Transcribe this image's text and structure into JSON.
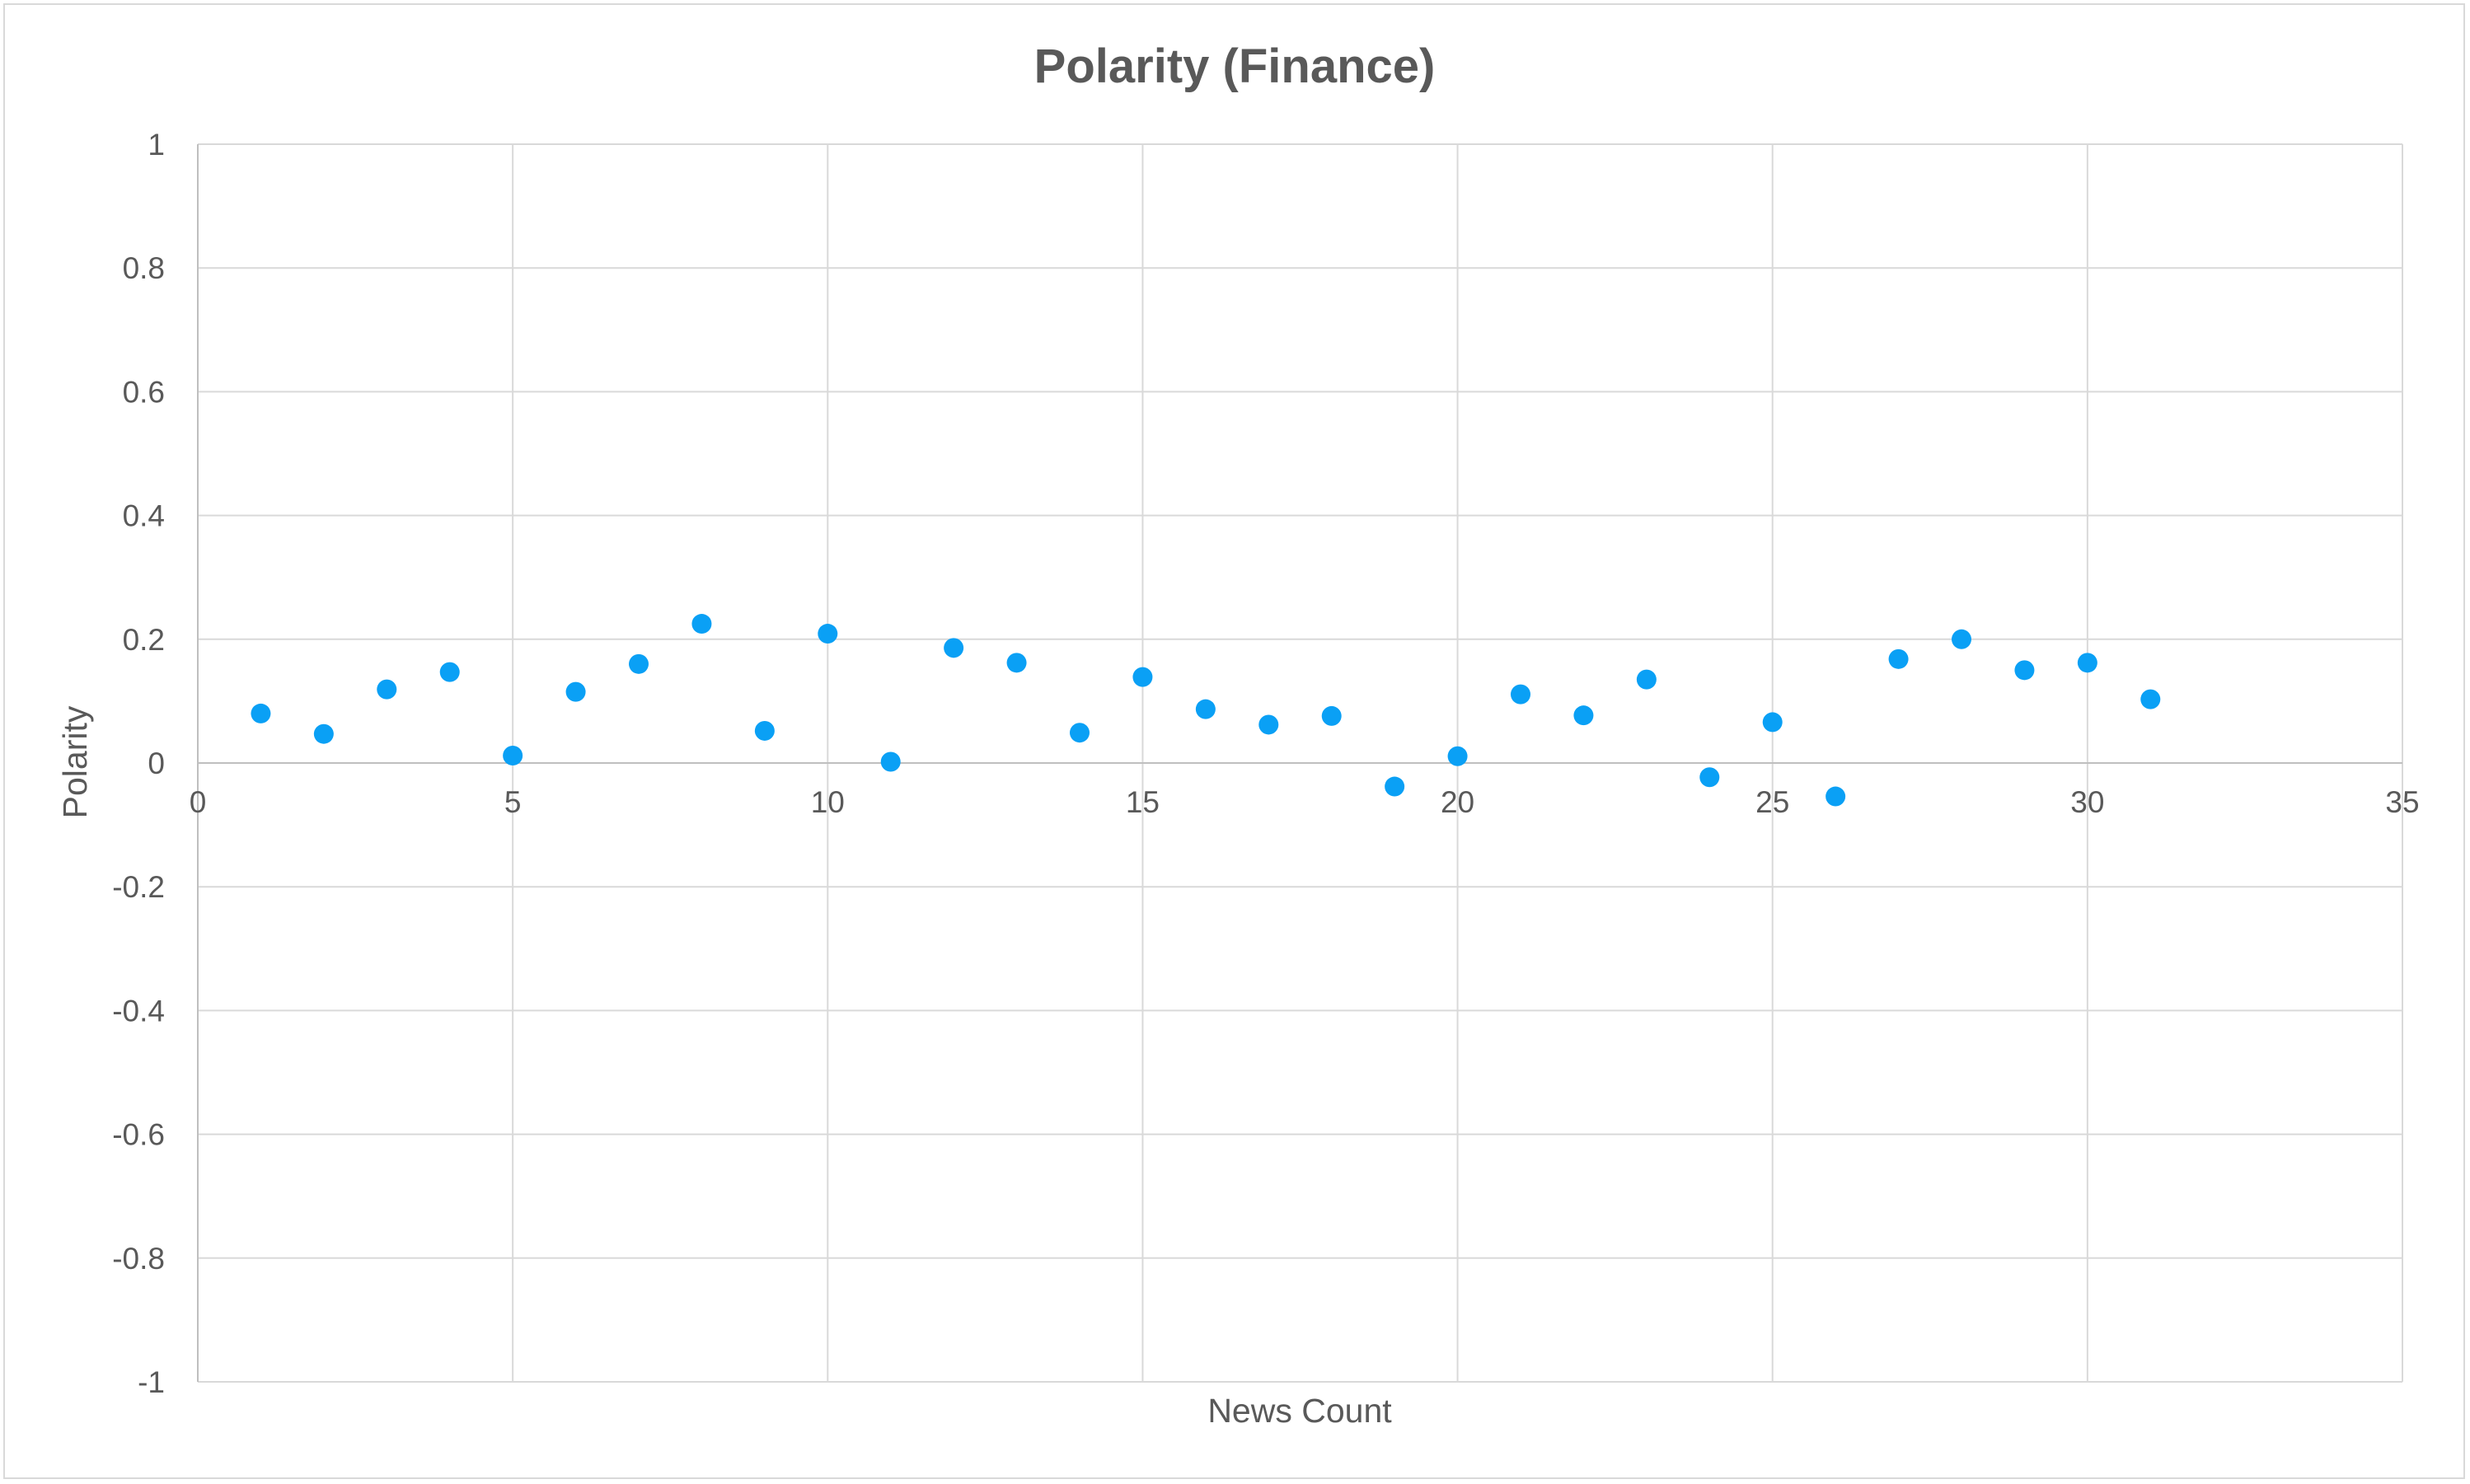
{
  "chart_data": {
    "type": "scatter",
    "title": "Polarity (Finance)",
    "xlabel": "News Count",
    "ylabel": "Polarity",
    "xlim": [
      0,
      35
    ],
    "ylim": [
      -1,
      1
    ],
    "x_ticks": [
      0,
      5,
      10,
      15,
      20,
      25,
      30,
      35
    ],
    "y_ticks": [
      1,
      0.8,
      0.6,
      0.4,
      0.2,
      0,
      -0.2,
      -0.4,
      -0.6,
      -0.8,
      -1
    ],
    "x_tick_labels": [
      "0",
      "5",
      "10",
      "15",
      "20",
      "25",
      "30",
      "35"
    ],
    "y_tick_labels": [
      "1",
      "0.8",
      "0.6",
      "0.4",
      "0.2",
      "0",
      "-0.2",
      "-0.4",
      "-0.6",
      "-0.8",
      "-1"
    ],
    "grid": true,
    "marker_color": "#0aa0f5",
    "points": [
      {
        "x": 1,
        "y": 0.08
      },
      {
        "x": 2,
        "y": 0.047
      },
      {
        "x": 3,
        "y": 0.119
      },
      {
        "x": 4,
        "y": 0.147
      },
      {
        "x": 5,
        "y": 0.012
      },
      {
        "x": 6,
        "y": 0.115
      },
      {
        "x": 7,
        "y": 0.16
      },
      {
        "x": 8,
        "y": 0.225
      },
      {
        "x": 9,
        "y": 0.052
      },
      {
        "x": 10,
        "y": 0.209
      },
      {
        "x": 11,
        "y": 0.002
      },
      {
        "x": 12,
        "y": 0.186
      },
      {
        "x": 13,
        "y": 0.162
      },
      {
        "x": 14,
        "y": 0.049
      },
      {
        "x": 15,
        "y": 0.139
      },
      {
        "x": 16,
        "y": 0.087
      },
      {
        "x": 17,
        "y": 0.062
      },
      {
        "x": 18,
        "y": 0.076
      },
      {
        "x": 19,
        "y": -0.038
      },
      {
        "x": 20,
        "y": 0.011
      },
      {
        "x": 21,
        "y": 0.111
      },
      {
        "x": 22,
        "y": 0.077
      },
      {
        "x": 23,
        "y": 0.135
      },
      {
        "x": 24,
        "y": -0.023
      },
      {
        "x": 25,
        "y": 0.066
      },
      {
        "x": 26,
        "y": -0.054
      },
      {
        "x": 27,
        "y": 0.168
      },
      {
        "x": 28,
        "y": 0.2
      },
      {
        "x": 29,
        "y": 0.15
      },
      {
        "x": 30,
        "y": 0.162
      },
      {
        "x": 31,
        "y": 0.103
      }
    ]
  }
}
